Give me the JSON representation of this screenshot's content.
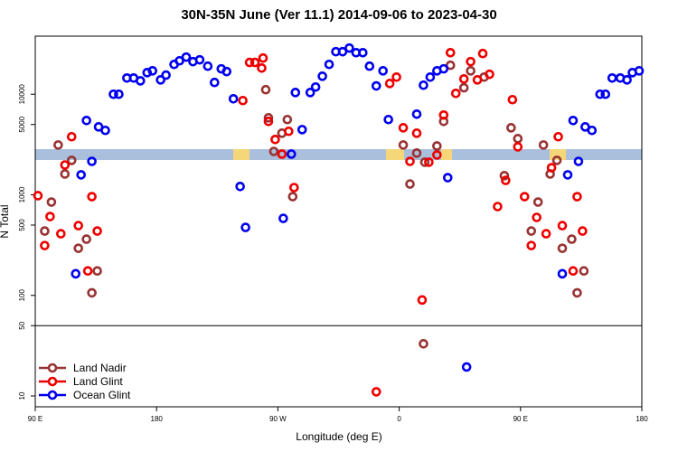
{
  "chart_data": {
    "type": "scatter",
    "title": "30N-35N June (Ver 11.1)   2014-09-06 to 2023-04-30",
    "x_label": "Longitude (deg E)",
    "y_label": "N Total",
    "yscale": "log",
    "xlim": [
      90,
      540
    ],
    "ylim": [
      7.8,
      37800
    ],
    "xticks": [
      {
        "value": 90,
        "label": "90 E"
      },
      180,
      {
        "value": 270,
        "label": "90 W"
      },
      {
        "value": 360,
        "label": "0"
      },
      {
        "value": 450,
        "label": "90 E"
      },
      {
        "value": 540,
        "label": "180"
      }
    ],
    "yticks": [
      10,
      50,
      100,
      500,
      1000,
      5000,
      10000
    ],
    "reference_line": 50,
    "legend": "bottom-left",
    "series": [
      {
        "name": "Land Nadir",
        "color": "#993333",
        "x": [
          97,
          102,
          107,
          112,
          117,
          122,
          128,
          132,
          136,
          261,
          263,
          267,
          273,
          277,
          281,
          363,
          368,
          373,
          379,
          388,
          393,
          398,
          408,
          413,
          423,
          438,
          443,
          448,
          458,
          463,
          467,
          472,
          477,
          481,
          488,
          492,
          497,
          378
        ],
        "values": [
          436,
          847,
          3130,
          1610,
          2200,
          294,
          362,
          106,
          175,
          11100,
          5830,
          2700,
          4100,
          5600,
          959,
          3130,
          1280,
          2600,
          2110,
          3060,
          5370,
          19400,
          11600,
          17100,
          14800,
          1550,
          4640,
          3620,
          436,
          847,
          3130,
          1610,
          2200,
          294,
          362,
          106,
          175,
          33
        ]
      },
      {
        "name": "Land Glint",
        "color": "#ee0000",
        "x": [
          92,
          97,
          101,
          109,
          112,
          117,
          122,
          129,
          132,
          136,
          244,
          249,
          253,
          258,
          259,
          263,
          268,
          273,
          278,
          282,
          353,
          358,
          363,
          368,
          373,
          377,
          382,
          388,
          393,
          398,
          402,
          408,
          413,
          418,
          422,
          427,
          433,
          439,
          444,
          448,
          453,
          458,
          462,
          469,
          473,
          478,
          481,
          489,
          492,
          496,
          343
        ],
        "values": [
          980,
          313,
          608,
          410,
          1980,
          3780,
          494,
          175,
          959,
          436,
          8650,
          20700,
          20700,
          18200,
          22900,
          5370,
          3550,
          2540,
          4280,
          1180,
          12800,
          14800,
          4640,
          2150,
          4100,
          90,
          2110,
          2490,
          6210,
          25900,
          10200,
          14200,
          21100,
          13900,
          25400,
          15800,
          764,
          1390,
          8830,
          3000,
          959,
          313,
          596,
          410,
          1860,
          3780,
          494,
          175,
          959,
          436,
          11
        ]
      },
      {
        "name": "Ocean Glint",
        "color": "#0000ee",
        "x": [
          120,
          124,
          128,
          132,
          137,
          142,
          148,
          152,
          158,
          163,
          168,
          173,
          177,
          183,
          187,
          193,
          197,
          202,
          207,
          212,
          218,
          223,
          228,
          232,
          237,
          242,
          246,
          274,
          280,
          283,
          288,
          294,
          298,
          303,
          308,
          313,
          318,
          323,
          328,
          333,
          338,
          343,
          348,
          352,
          373,
          378,
          383,
          388,
          393,
          396,
          410,
          481,
          485,
          489,
          493,
          498,
          503,
          509,
          513,
          518,
          524,
          529,
          533,
          538
        ],
        "values": [
          164,
          1580,
          5480,
          2150,
          4740,
          4370,
          10000,
          10000,
          14500,
          14500,
          13600,
          16400,
          17100,
          13900,
          15500,
          19800,
          21500,
          23400,
          21100,
          22000,
          19000,
          13100,
          17900,
          16800,
          9010,
          1210,
          474,
          583,
          2540,
          10400,
          4450,
          10400,
          11800,
          15100,
          19800,
          26500,
          26500,
          28800,
          25900,
          25900,
          19000,
          12100,
          17100,
          5600,
          6340,
          12300,
          14800,
          17100,
          17900,
          1480,
          19.4,
          164,
          1580,
          5480,
          2150,
          4740,
          4370,
          10000,
          10000,
          14500,
          14500,
          13900,
          16400,
          17100
        ]
      }
    ]
  }
}
